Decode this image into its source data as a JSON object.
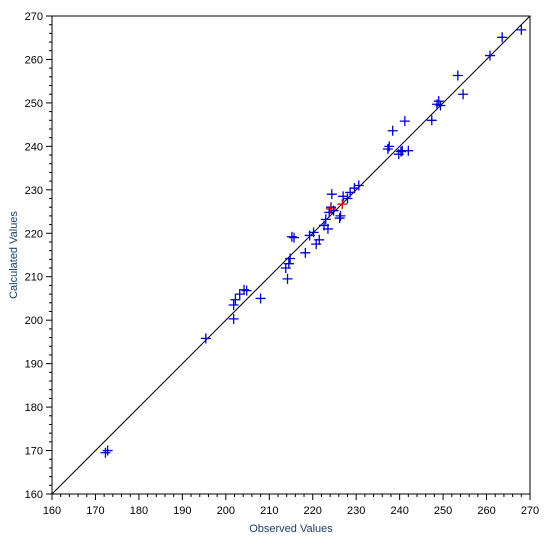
{
  "chart_data": {
    "type": "scatter",
    "xlabel": "Observed Values",
    "ylabel": "Calculated Values",
    "xlim": [
      160,
      270
    ],
    "ylim": [
      160,
      270
    ],
    "xticks": [
      160,
      170,
      180,
      190,
      200,
      210,
      220,
      230,
      240,
      250,
      260,
      270
    ],
    "yticks": [
      160,
      170,
      180,
      190,
      200,
      210,
      220,
      230,
      240,
      250,
      260,
      270
    ],
    "grid": false,
    "reference_line": {
      "from": [
        160,
        160
      ],
      "to": [
        270,
        270
      ],
      "color": "#000000"
    },
    "marker": "plus",
    "series": [
      {
        "color": "#0000cc",
        "points": [
          [
            172.3,
            169.5
          ],
          [
            172.8,
            170.0
          ],
          [
            195.4,
            195.8
          ],
          [
            201.8,
            200.3
          ],
          [
            201.8,
            203.5
          ],
          [
            202.2,
            204.7
          ],
          [
            203.2,
            206.0
          ],
          [
            204.2,
            207.0
          ],
          [
            204.8,
            206.8
          ],
          [
            208.0,
            205.0
          ],
          [
            213.8,
            212.0
          ],
          [
            214.2,
            209.5
          ],
          [
            214.5,
            213.0
          ],
          [
            214.8,
            214.2
          ],
          [
            215.2,
            219.2
          ],
          [
            215.7,
            219.0
          ],
          [
            218.3,
            215.5
          ],
          [
            219.3,
            219.5
          ],
          [
            220.2,
            220.2
          ],
          [
            220.8,
            217.5
          ],
          [
            221.5,
            218.5
          ],
          [
            222.6,
            221.8
          ],
          [
            223.0,
            223.2
          ],
          [
            223.5,
            221.0
          ],
          [
            223.8,
            224.8
          ],
          [
            224.2,
            226.0
          ],
          [
            224.4,
            229.0
          ],
          [
            224.8,
            225.2
          ],
          [
            226.4,
            224.0
          ],
          [
            226.2,
            223.5
          ],
          [
            227.0,
            228.5
          ],
          [
            228.0,
            228.0
          ],
          [
            228.6,
            229.4
          ],
          [
            229.6,
            230.4
          ],
          [
            230.6,
            231.0
          ],
          [
            237.3,
            239.4
          ],
          [
            237.6,
            240.0
          ],
          [
            238.4,
            243.6
          ],
          [
            239.8,
            238.2
          ],
          [
            240.3,
            238.8
          ],
          [
            240.6,
            239.0
          ],
          [
            241.2,
            245.8
          ],
          [
            242.0,
            239.0
          ],
          [
            247.4,
            246.0
          ],
          [
            248.6,
            249.7
          ],
          [
            249.0,
            250.4
          ],
          [
            249.4,
            249.4
          ],
          [
            253.4,
            256.3
          ],
          [
            254.6,
            252.0
          ],
          [
            260.8,
            260.9
          ],
          [
            263.6,
            265.1
          ],
          [
            268.0,
            266.8
          ]
        ]
      },
      {
        "color": "#cc0000",
        "points": [
          [
            224.2,
            225.6
          ],
          [
            226.8,
            226.7
          ]
        ]
      }
    ]
  }
}
